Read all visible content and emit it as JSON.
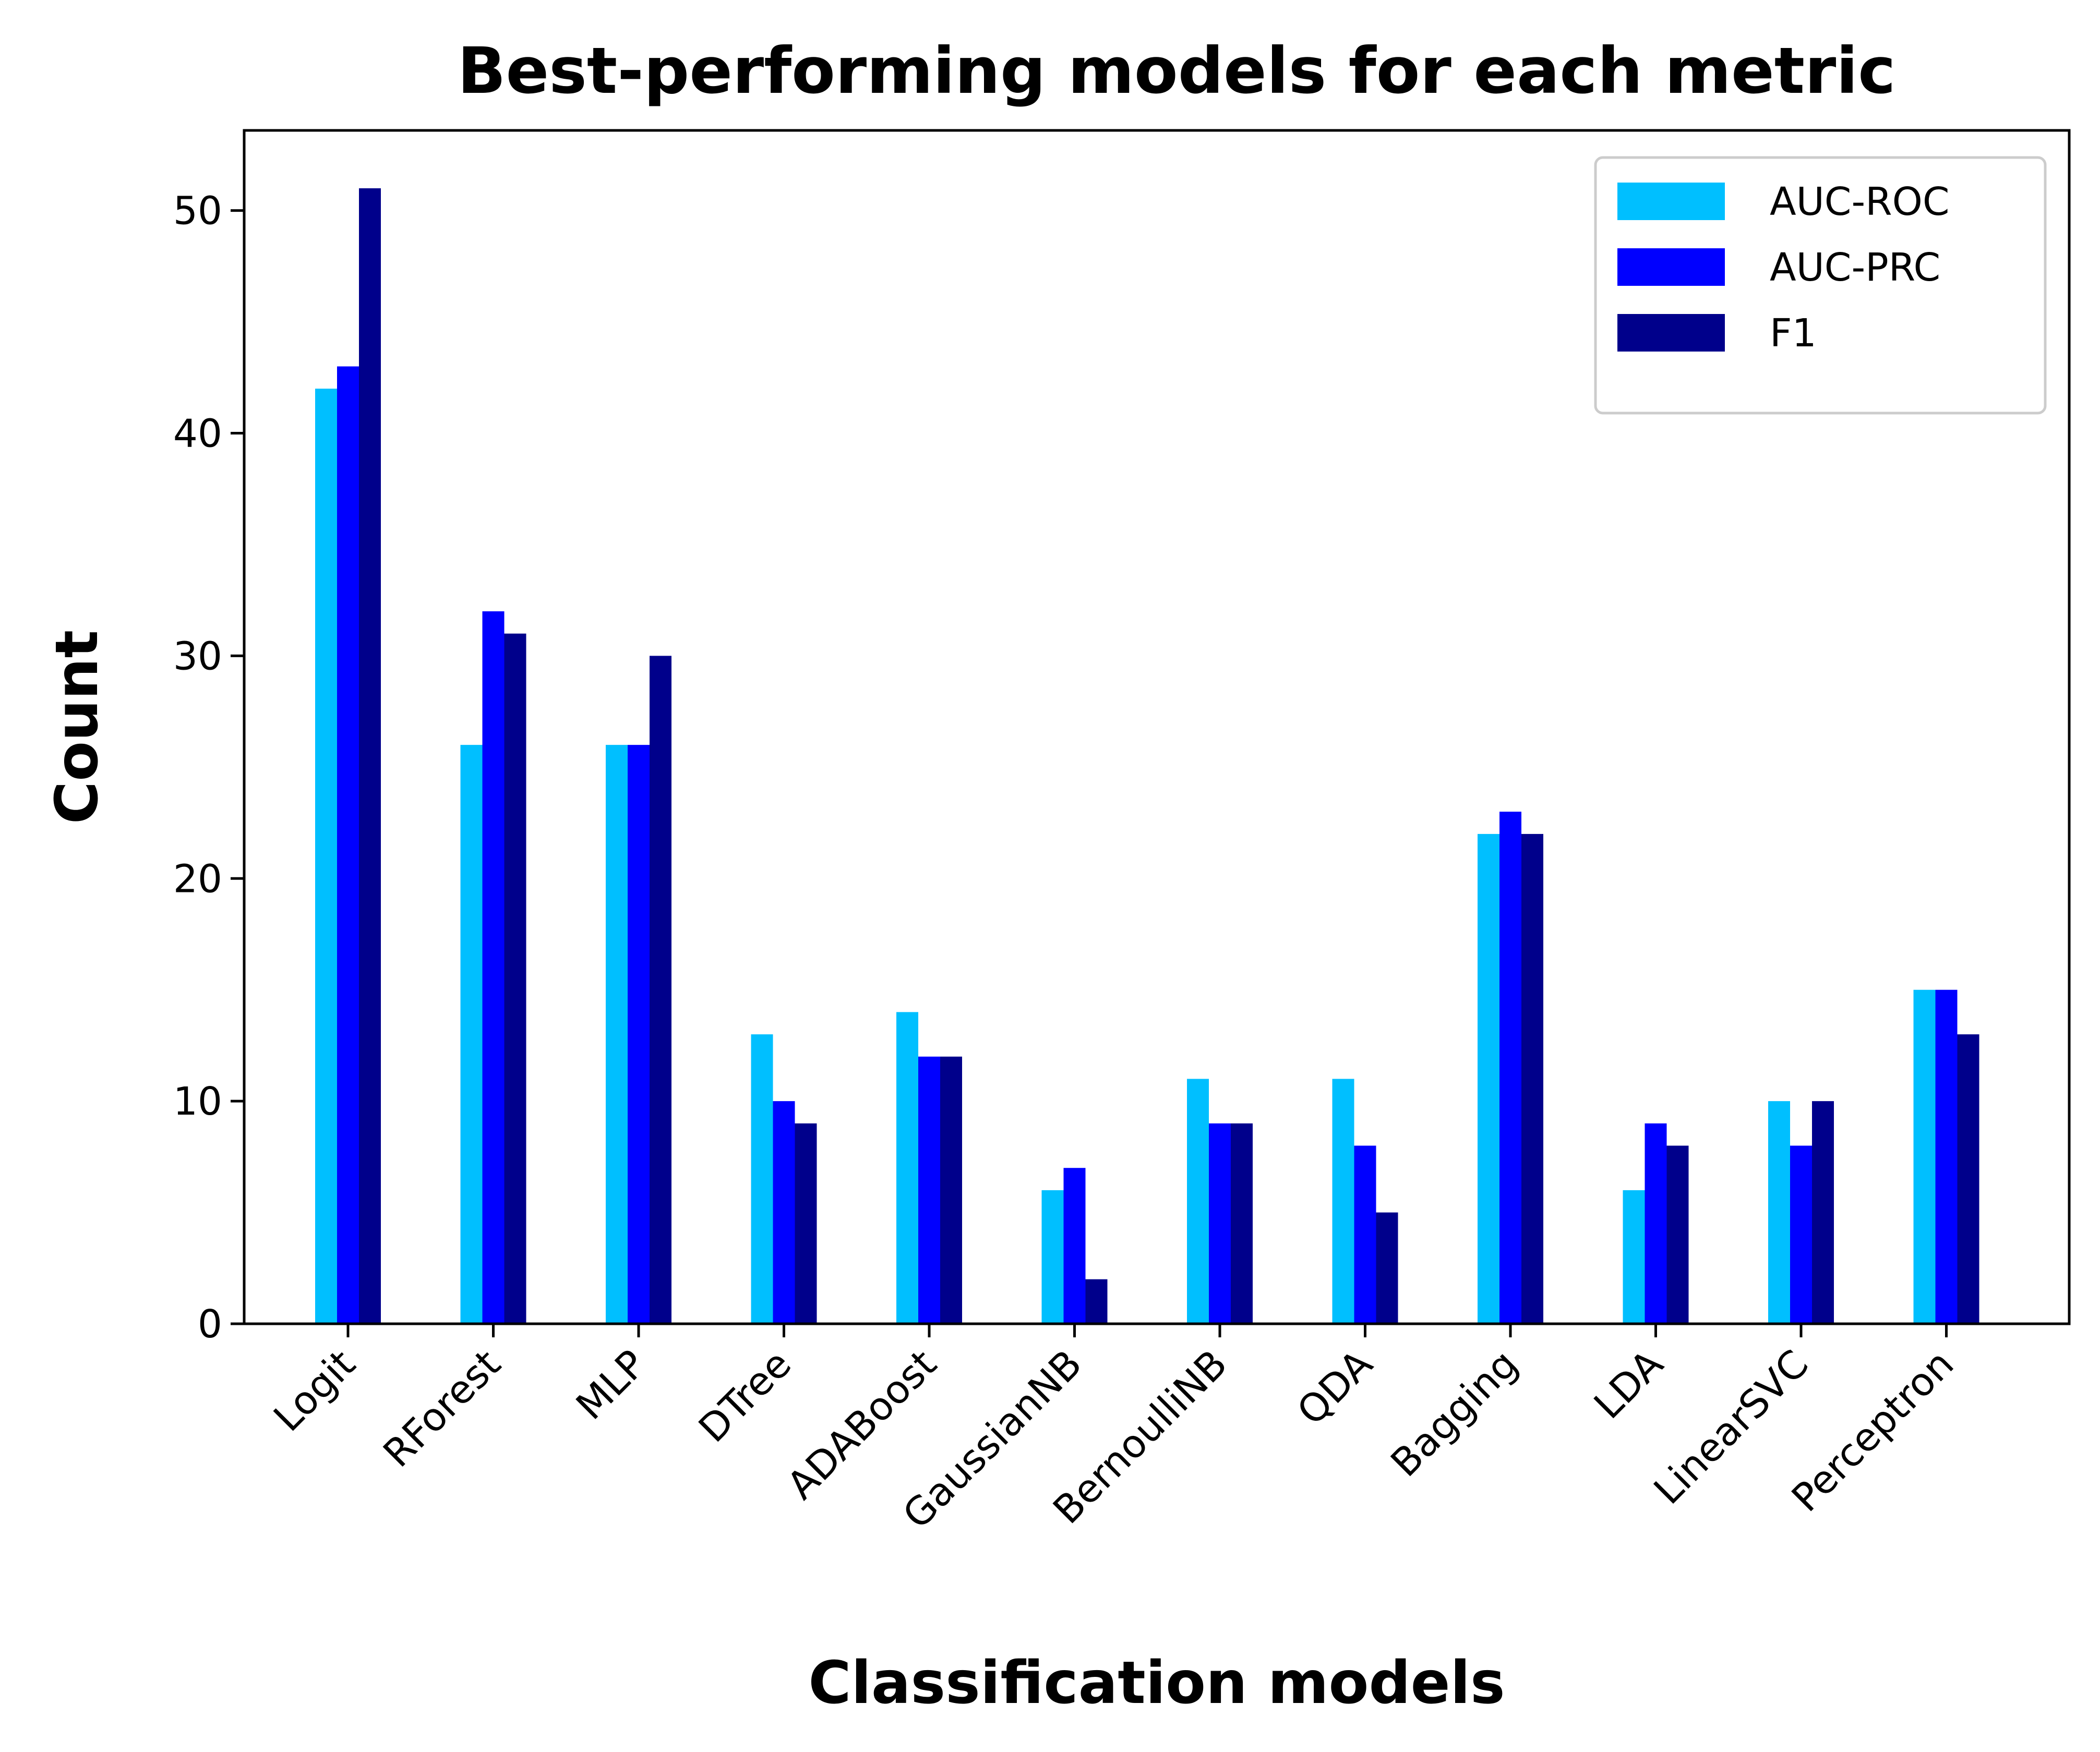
{
  "chart_data": {
    "type": "bar",
    "title": "Best-performing models for each metric",
    "xlabel": "Classification models",
    "ylabel": "Count",
    "categories": [
      "Logit",
      "RForest",
      "MLP",
      "DTree",
      "ADABoost",
      "GaussianNB",
      "BernoulliNB",
      "QDA",
      "Bagging",
      "LDA",
      "LinearSVC",
      "Perceptron"
    ],
    "series": [
      {
        "name": "AUC-ROC",
        "color": "#00bfff",
        "values": [
          42,
          26,
          26,
          13,
          14,
          6,
          11,
          11,
          22,
          6,
          10,
          15
        ]
      },
      {
        "name": "AUC-PRC",
        "color": "#0000ff",
        "values": [
          43,
          32,
          26,
          10,
          12,
          7,
          9,
          8,
          23,
          9,
          8,
          15
        ]
      },
      {
        "name": "F1",
        "color": "#00008b",
        "values": [
          51,
          31,
          30,
          9,
          12,
          2,
          9,
          5,
          22,
          8,
          10,
          13
        ]
      }
    ],
    "ylim": [
      0,
      53.6
    ],
    "yticks": [
      0,
      10,
      20,
      30,
      40,
      50
    ],
    "grid": false,
    "legend_position": "top-right"
  }
}
